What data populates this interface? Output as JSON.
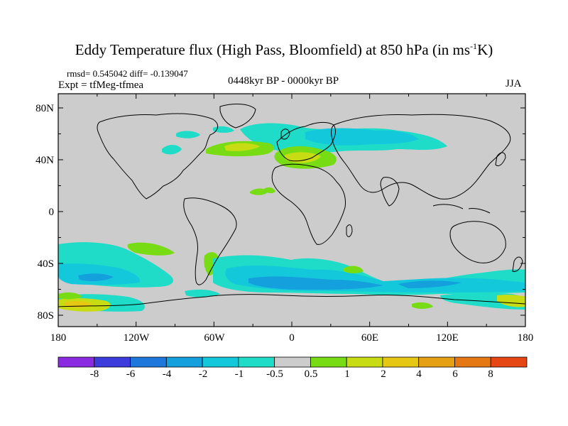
{
  "title": {
    "main": "Eddy Temperature flux (High Pass, Bloomfield) at 850 hPa (in ms",
    "exponent": "-1",
    "suffix": "K)"
  },
  "stats": "rmsd= 0.545042 diff= -0.139047",
  "experiment": "Expt = tfMeg-tfmea",
  "period": "0448kyr BP - 0000kyr BP",
  "season": "JJA",
  "axes": {
    "lat_ticks": [
      "80N",
      "40N",
      "0",
      "40S",
      "80S"
    ],
    "lon_ticks": [
      "180",
      "120W",
      "60W",
      "0",
      "60E",
      "120E",
      "180"
    ]
  },
  "colorbar": {
    "colors": [
      "#8a2be2",
      "#3c3cdc",
      "#1e78dc",
      "#14a0dc",
      "#14c8dc",
      "#1edcc8",
      "#cccccc",
      "#78dc14",
      "#c8dc14",
      "#e6c814",
      "#e6a014",
      "#e67814",
      "#e64614"
    ],
    "labels": [
      "-8",
      "-6",
      "-4",
      "-2",
      "-1",
      "-0.5",
      "0.5",
      "1",
      "2",
      "4",
      "6",
      "8"
    ]
  },
  "map_colors": {
    "land_bg": "#cccccc",
    "cyan": "#1edcc8",
    "light_blue": "#14c8dc",
    "blue": "#14a0dc",
    "dark_blue": "#1e78dc",
    "green": "#78dc14",
    "yellow_green": "#c8dc14",
    "yellow": "#e6c814",
    "orange": "#e6a014"
  }
}
